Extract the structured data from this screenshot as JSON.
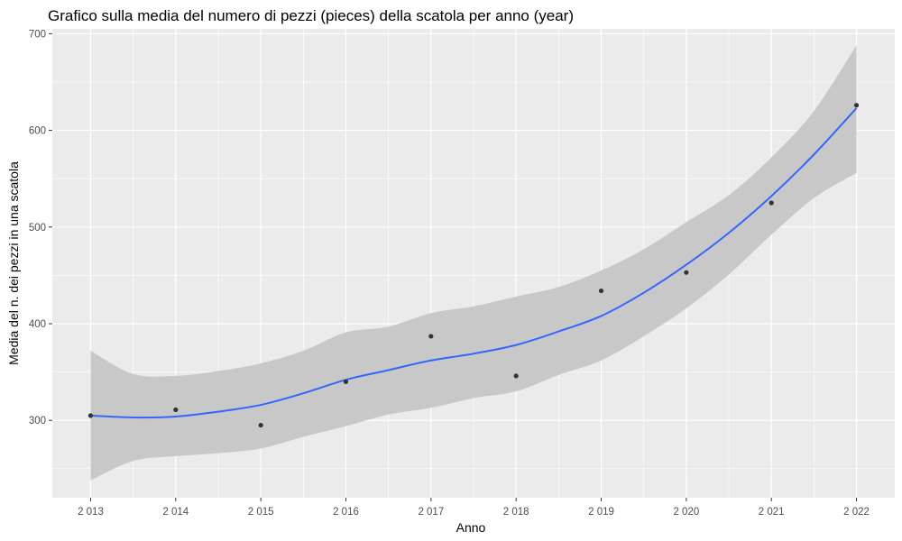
{
  "chart_data": {
    "type": "scatter",
    "title": "Grafico sulla media del numero di pezzi (pieces) della scatola per anno (year)",
    "xlabel": "Anno",
    "ylabel": "Media del n. dei pezzi in una scatola",
    "xlim": [
      2012.55,
      2022.45
    ],
    "ylim": [
      220,
      705
    ],
    "x_ticks": [
      2013,
      2014,
      2015,
      2016,
      2017,
      2018,
      2019,
      2020,
      2021,
      2022
    ],
    "x_tick_labels": [
      "2 013",
      "2 014",
      "2 015",
      "2 016",
      "2 017",
      "2 018",
      "2 019",
      "2 020",
      "2 021",
      "2 022"
    ],
    "y_ticks": [
      300,
      400,
      500,
      600,
      700
    ],
    "y_tick_labels": [
      "300",
      "400",
      "500",
      "600",
      "700"
    ],
    "grid": true,
    "background": "#ebebeb",
    "colors": {
      "points": "#333333",
      "smooth_line": "#3366ff",
      "confidence_band": "#c8c8c8",
      "grid": "#ffffff"
    },
    "points": {
      "x": [
        2013,
        2014,
        2015,
        2016,
        2017,
        2018,
        2019,
        2020,
        2021,
        2022
      ],
      "y": [
        305,
        311,
        295,
        340,
        387,
        346,
        434,
        453,
        525,
        626
      ]
    },
    "smooth": {
      "x": [
        2013,
        2013.5,
        2014,
        2014.5,
        2015,
        2015.5,
        2016,
        2016.5,
        2017,
        2017.5,
        2018,
        2018.5,
        2019,
        2019.5,
        2020,
        2020.5,
        2021,
        2021.5,
        2022
      ],
      "y": [
        305,
        303,
        304,
        309,
        316,
        328,
        342,
        352,
        362,
        369,
        378,
        392,
        408,
        432,
        461,
        494,
        532,
        575,
        623
      ],
      "lower": [
        238,
        258,
        263,
        266,
        271,
        283,
        294,
        306,
        313,
        323,
        330,
        347,
        362,
        387,
        416,
        451,
        492,
        530,
        556
      ],
      "upper": [
        372,
        348,
        346,
        351,
        359,
        372,
        391,
        397,
        411,
        418,
        428,
        438,
        455,
        477,
        505,
        533,
        572,
        620,
        688
      ]
    }
  }
}
